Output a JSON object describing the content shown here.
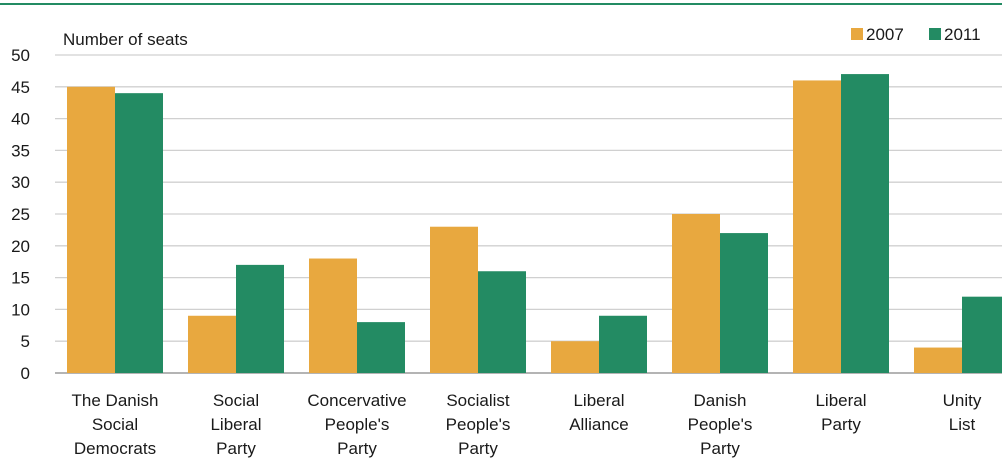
{
  "chart_data": {
    "type": "bar",
    "ylabel": "Number of seats",
    "ylim": [
      0,
      50
    ],
    "yticks": [
      "0",
      "5",
      "10",
      "15",
      "20",
      "25",
      "30",
      "35",
      "40",
      "45",
      "50"
    ],
    "grid": true,
    "legend_placement": "top-right",
    "categories": [
      [
        "The Danish",
        "Social",
        "Democrats"
      ],
      [
        "Social",
        "Liberal",
        "Party"
      ],
      [
        "Concervative",
        "People's",
        "Party"
      ],
      [
        "Socialist",
        "People's",
        "Party"
      ],
      [
        "Liberal",
        "Alliance"
      ],
      [
        "Danish",
        "People's",
        "Party"
      ],
      [
        "Liberal",
        "Party"
      ],
      [
        "Unity",
        "List"
      ]
    ],
    "series": [
      {
        "name": "2007",
        "color": "#E8A83F",
        "values": [
          45,
          9,
          18,
          23,
          5,
          25,
          46,
          4
        ]
      },
      {
        "name": "2011",
        "color": "#238B63",
        "values": [
          44,
          17,
          8,
          16,
          9,
          22,
          47,
          12
        ]
      }
    ]
  },
  "colors": {
    "top_rule": "#238B63",
    "gridline": "#d0d0d0",
    "axis": "#888888"
  }
}
